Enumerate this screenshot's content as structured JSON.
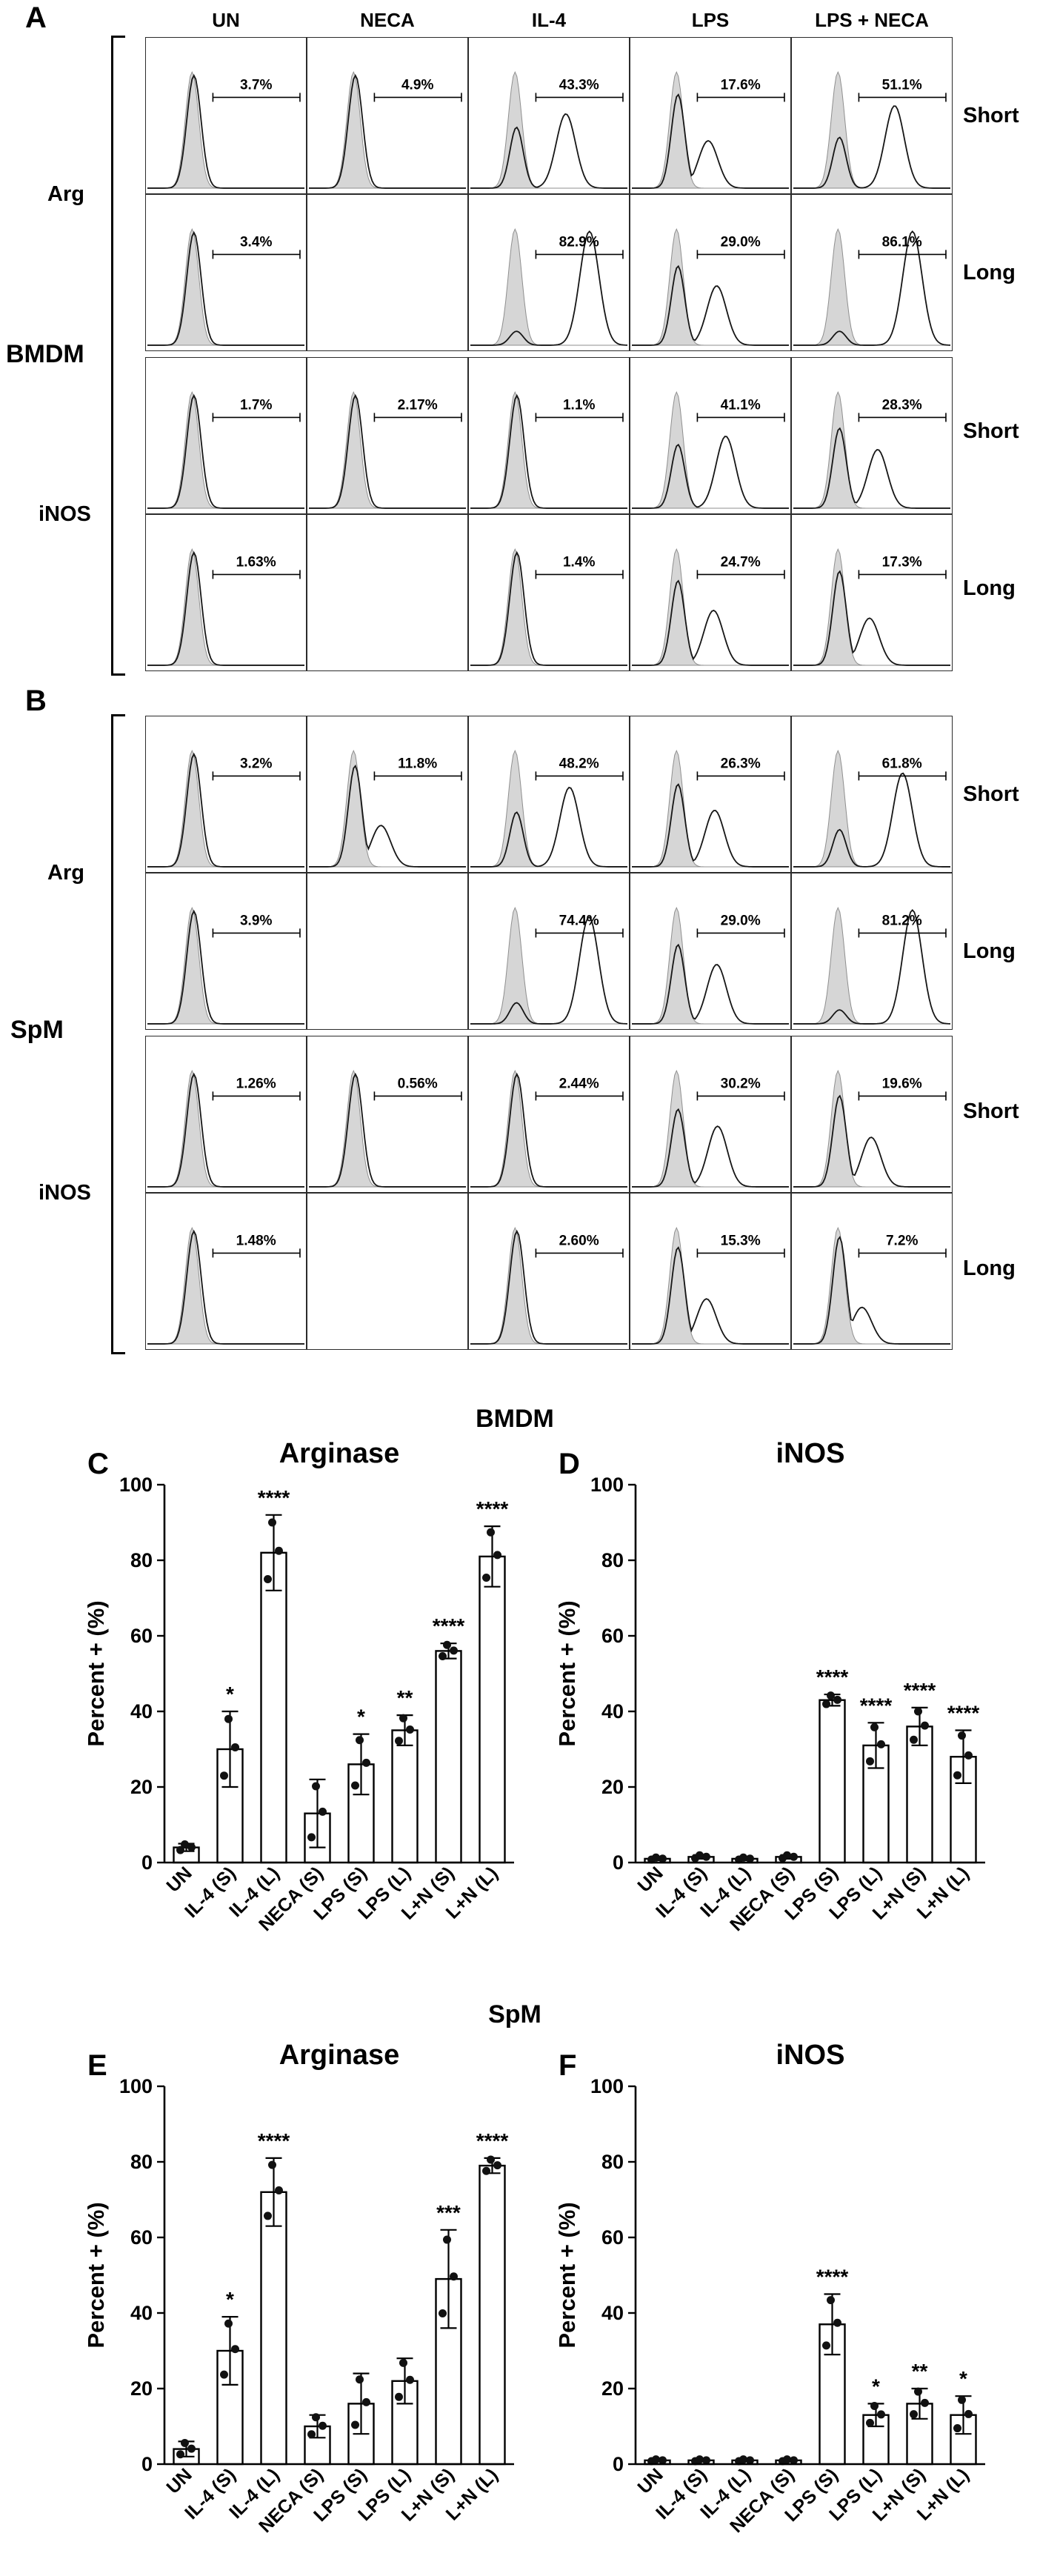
{
  "flow_panels": [
    {
      "label": "A",
      "group": "BMDM",
      "marker_top": "Arg",
      "marker_bottom": "iNOS",
      "col_headers": [
        "UN",
        "NECA",
        "IL-4",
        "LPS",
        "LPS + NECA"
      ],
      "row_time_labels": [
        "Short",
        "Long",
        "Short",
        "Long"
      ],
      "rows": [
        {
          "marker": "Arg",
          "time": "Short",
          "pcts": [
            "3.7%",
            "4.9%",
            "43.3%",
            "17.6%",
            "51.1%"
          ]
        },
        {
          "marker": "Arg",
          "time": "Long",
          "pcts": [
            "3.4%",
            null,
            "82.9%",
            "29.0%",
            "86.1%"
          ]
        },
        {
          "marker": "iNOS",
          "time": "Short",
          "pcts": [
            "1.7%",
            "2.17%",
            "1.1%",
            "41.1%",
            "28.3%"
          ]
        },
        {
          "marker": "iNOS",
          "time": "Long",
          "pcts": [
            "1.63%",
            null,
            "1.4%",
            "24.7%",
            "17.3%"
          ]
        }
      ]
    },
    {
      "label": "B",
      "group": "SpM",
      "marker_top": "Arg",
      "marker_bottom": "iNOS",
      "col_headers": [],
      "row_time_labels": [
        "Short",
        "Long",
        "Short",
        "Long"
      ],
      "rows": [
        {
          "marker": "Arg",
          "time": "Short",
          "pcts": [
            "3.2%",
            "11.8%",
            "48.2%",
            "26.3%",
            "61.8%"
          ]
        },
        {
          "marker": "Arg",
          "time": "Long",
          "pcts": [
            "3.9%",
            null,
            "74.4%",
            "29.0%",
            "81.2%"
          ]
        },
        {
          "marker": "iNOS",
          "time": "Short",
          "pcts": [
            "1.26%",
            "0.56%",
            "2.44%",
            "30.2%",
            "19.6%"
          ]
        },
        {
          "marker": "iNOS",
          "time": "Long",
          "pcts": [
            "1.48%",
            null,
            "2.60%",
            "15.3%",
            "7.2%"
          ]
        }
      ]
    }
  ],
  "chart_sections": [
    {
      "group": "BMDM"
    },
    {
      "group": "SpM"
    }
  ],
  "chart_data": [
    {
      "panel": "C",
      "group": "BMDM",
      "type": "bar",
      "title": "Arginase",
      "ylabel": "Percent + (%)",
      "ylim": [
        0,
        100
      ],
      "yticks": [
        0,
        20,
        40,
        60,
        80,
        100
      ],
      "grid": false,
      "legend": "none",
      "categories": [
        "UN",
        "IL-4 (S)",
        "IL-4 (L)",
        "NECA (S)",
        "LPS (S)",
        "LPS (L)",
        "L+N (S)",
        "L+N (L)"
      ],
      "values": [
        4,
        30,
        82,
        13,
        26,
        35,
        56,
        81
      ],
      "errors": [
        1,
        10,
        10,
        9,
        8,
        4,
        2,
        8
      ],
      "sig": [
        "",
        "*",
        "****",
        "",
        "*",
        "**",
        "****",
        "****"
      ]
    },
    {
      "panel": "D",
      "group": "BMDM",
      "type": "bar",
      "title": "iNOS",
      "ylabel": "Percent + (%)",
      "ylim": [
        0,
        100
      ],
      "yticks": [
        0,
        20,
        40,
        60,
        80,
        100
      ],
      "grid": false,
      "legend": "none",
      "categories": [
        "UN",
        "IL-4 (S)",
        "IL-4 (L)",
        "NECA (S)",
        "LPS (S)",
        "LPS (L)",
        "L+N (S)",
        "L+N (L)"
      ],
      "values": [
        1,
        1.5,
        1,
        1.5,
        43,
        31,
        36,
        28
      ],
      "errors": [
        0.4,
        0.5,
        0.4,
        0.5,
        1.5,
        6,
        5,
        7
      ],
      "sig": [
        "",
        "",
        "",
        "",
        "****",
        "****",
        "****",
        "****"
      ]
    },
    {
      "panel": "E",
      "group": "SpM",
      "type": "bar",
      "title": "Arginase",
      "ylabel": "Percent + (%)",
      "ylim": [
        0,
        100
      ],
      "yticks": [
        0,
        20,
        40,
        60,
        80,
        100
      ],
      "grid": false,
      "legend": "none",
      "categories": [
        "UN",
        "IL-4 (S)",
        "IL-4 (L)",
        "NECA (S)",
        "LPS (S)",
        "LPS (L)",
        "L+N (S)",
        "L+N (L)"
      ],
      "values": [
        4,
        30,
        72,
        10,
        16,
        22,
        49,
        79
      ],
      "errors": [
        2,
        9,
        9,
        3,
        8,
        6,
        13,
        2
      ],
      "sig": [
        "",
        "*",
        "****",
        "",
        "",
        "",
        "***",
        "****"
      ]
    },
    {
      "panel": "F",
      "group": "SpM",
      "type": "bar",
      "title": "iNOS",
      "ylabel": "Percent + (%)",
      "ylim": [
        0,
        100
      ],
      "yticks": [
        0,
        20,
        40,
        60,
        80,
        100
      ],
      "grid": false,
      "legend": "none",
      "categories": [
        "UN",
        "IL-4 (S)",
        "IL-4 (L)",
        "NECA (S)",
        "LPS (S)",
        "LPS (L)",
        "L+N (S)",
        "L+N (L)"
      ],
      "values": [
        1,
        1,
        1,
        1,
        37,
        13,
        16,
        13
      ],
      "errors": [
        0.3,
        0.3,
        0.3,
        0.3,
        8,
        3,
        4,
        5
      ],
      "sig": [
        "",
        "",
        "",
        "",
        "****",
        "*",
        "**",
        "*"
      ]
    }
  ],
  "colors": {
    "hist_fill": "#d6d6d6",
    "hist_control_stroke": "#8f8f8f",
    "hist_sample_stroke": "#161616",
    "axis": "#000000",
    "bar_fill": "#ffffff",
    "bar_stroke": "#000000",
    "point": "#111111"
  }
}
